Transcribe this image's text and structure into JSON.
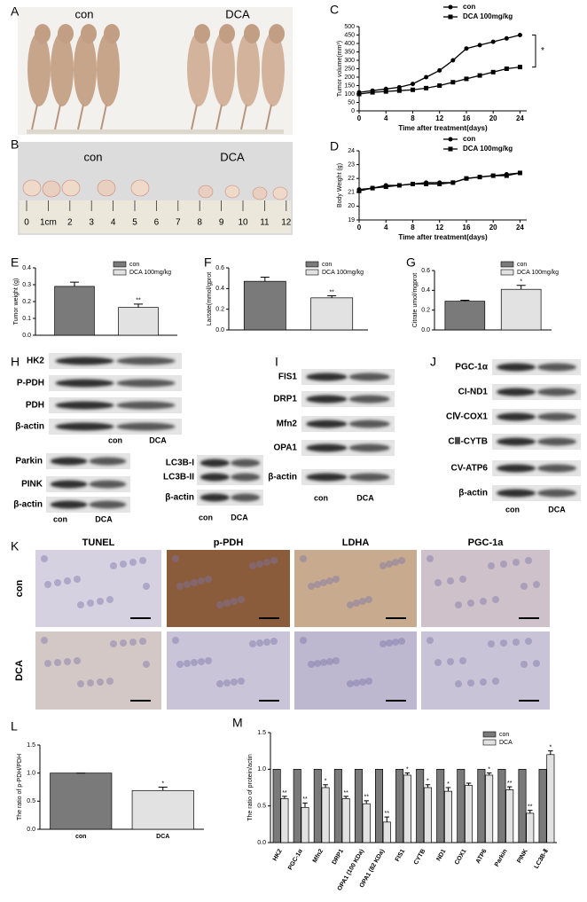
{
  "panel_labels": [
    "A",
    "B",
    "C",
    "D",
    "E",
    "F",
    "G",
    "H",
    "I",
    "J",
    "K",
    "L",
    "M"
  ],
  "photos": {
    "A": {
      "labels": [
        "con",
        "DCA"
      ]
    },
    "B": {
      "labels": [
        "con",
        "DCA"
      ],
      "ruler": [
        "0",
        "1cm",
        "2",
        "3",
        "4",
        "5",
        "6",
        "7",
        "8",
        "9",
        "10",
        "11",
        "12"
      ]
    }
  },
  "blots": [
    {
      "rows": [
        "HK2",
        "P-PDH",
        "PDH",
        "β-actin"
      ],
      "lanes": [
        "con",
        "DCA"
      ]
    },
    {
      "rows": [
        "Parkin",
        "PINK",
        "β-actin"
      ],
      "lanes": [
        "con",
        "DCA"
      ]
    },
    {
      "rows": [
        "LC3B-I",
        "LC3B-II",
        "β-actin"
      ],
      "lanes": [
        "con",
        "DCA"
      ]
    },
    {
      "rows": [
        "FIS1",
        "DRP1",
        "Mfn2",
        "OPA1",
        "β-actin"
      ],
      "lanes": [
        "con",
        "DCA"
      ]
    },
    {
      "rows": [
        "PGC-1α",
        "CI-ND1",
        "CⅣ-COX1",
        "CⅢ-CYTB",
        "CV-ATP6",
        "β-actin"
      ],
      "lanes": [
        "con",
        "DCA"
      ]
    }
  ],
  "ihc": {
    "columns": [
      "TUNEL",
      "p-PDH",
      "LDHA",
      "PGC-1a"
    ],
    "rows": [
      "con",
      "DCA"
    ]
  },
  "chart_data": [
    {
      "type": "line",
      "x": [
        0,
        2,
        4,
        6,
        8,
        10,
        12,
        14,
        16,
        18,
        20,
        22,
        24
      ],
      "xlim": [
        0,
        25
      ],
      "xticks": [
        0,
        4,
        8,
        12,
        16,
        20,
        24
      ],
      "ylim": [
        0,
        500
      ],
      "yticks": [
        0,
        50,
        100,
        150,
        200,
        250,
        300,
        350,
        400,
        450,
        500
      ],
      "x_label": "Time after treatment(days)",
      "y_label": "Tumor volume(mm³)",
      "series": [
        {
          "name": "con",
          "color": "#000000",
          "marker": "circle",
          "values": [
            110,
            120,
            130,
            140,
            160,
            200,
            240,
            300,
            370,
            390,
            410,
            430,
            450
          ]
        },
        {
          "name": "DCA 100mg/kg",
          "color": "#000000",
          "marker": "square",
          "values": [
            100,
            110,
            115,
            120,
            125,
            135,
            150,
            170,
            190,
            210,
            230,
            250,
            260
          ]
        }
      ],
      "annotation": "*"
    },
    {
      "type": "line",
      "x": [
        0,
        2,
        4,
        6,
        8,
        10,
        12,
        14,
        16,
        18,
        20,
        22,
        24
      ],
      "xlim": [
        0,
        25
      ],
      "xticks": [
        0,
        4,
        8,
        12,
        16,
        20,
        24
      ],
      "ylim": [
        19,
        24
      ],
      "yticks": [
        19,
        20,
        21,
        22,
        23,
        24
      ],
      "x_label": "Time after treatment(days)",
      "y_label": "Body Weight (g)",
      "series": [
        {
          "name": "con",
          "color": "#000000",
          "marker": "circle",
          "values": [
            21.2,
            21.3,
            21.5,
            21.5,
            21.6,
            21.7,
            21.7,
            21.7,
            22.0,
            22.1,
            22.2,
            22.3,
            22.4
          ]
        },
        {
          "name": "DCA 100mg/kg",
          "color": "#000000",
          "marker": "square",
          "values": [
            21.1,
            21.3,
            21.4,
            21.5,
            21.6,
            21.6,
            21.6,
            21.7,
            22.0,
            22.1,
            22.2,
            22.2,
            22.4
          ]
        }
      ]
    },
    {
      "type": "bar",
      "y_label": "Tumor weight (g)",
      "ylim": [
        0,
        0.4
      ],
      "yticks": [
        {
          "value": 0,
          "label": "0.0"
        },
        0.1,
        0.2,
        0.3,
        0.4
      ],
      "series": [
        {
          "name": "con",
          "color": "#7a7a7a",
          "values": [
            0.29
          ],
          "errors": [
            0.025
          ]
        },
        {
          "name": "DCA 100mg/kg",
          "color": "#e2e2e2",
          "values": [
            0.165
          ],
          "errors": [
            0.02
          ]
        }
      ],
      "annotation": "**"
    },
    {
      "type": "bar",
      "y_label": "Lactate(mmol/gprot",
      "ylim": [
        0,
        0.6
      ],
      "yticks": [
        {
          "value": 0,
          "label": "0.0"
        },
        0.2,
        0.4,
        0.6
      ],
      "series": [
        {
          "name": "con",
          "color": "#7a7a7a",
          "values": [
            0.47
          ],
          "errors": [
            0.04
          ]
        },
        {
          "name": "DCA 100mg/kg",
          "color": "#e2e2e2",
          "values": [
            0.31
          ],
          "errors": [
            0.02
          ]
        }
      ],
      "annotation": "**"
    },
    {
      "type": "bar",
      "y_label": "Citrate umol/mgprot",
      "ylim": [
        0,
        0.6
      ],
      "yticks": [
        {
          "value": 0,
          "label": "0.0"
        },
        0.2,
        0.4,
        0.6
      ],
      "series": [
        {
          "name": "con",
          "color": "#7a7a7a",
          "values": [
            0.29
          ],
          "errors": [
            0.01
          ]
        },
        {
          "name": "DCA 100mg/kg",
          "color": "#e2e2e2",
          "values": [
            0.41
          ],
          "errors": [
            0.04
          ]
        }
      ],
      "annotation": "*"
    },
    {
      "type": "bar",
      "y_label": "The ratio of p-PDH/PDH",
      "ylim": [
        0,
        1.5
      ],
      "yticks": [
        {
          "value": 0,
          "label": "0.0"
        },
        0.5,
        {
          "value": 1,
          "label": "1.0"
        },
        1.5
      ],
      "categories": [
        "con",
        "DCA"
      ],
      "values": [
        1,
        0.69
      ],
      "errors": [
        0,
        0.06
      ],
      "colors": [
        "#7a7a7a",
        "#e2e2e2"
      ],
      "annotation": "*"
    },
    {
      "type": "bar",
      "y_label": "The ratio of protein/actin",
      "ylim": [
        0,
        1.5
      ],
      "yticks": [
        {
          "value": 0,
          "label": "0.0"
        },
        0.5,
        {
          "value": 1,
          "label": "1.0"
        },
        1.5
      ],
      "categories": [
        "HK2",
        "PGC-1α",
        "Mfn2",
        "DRP1",
        "OPA1 (100 KDa)",
        "OPA1 (82 KDa)",
        "FIS1",
        "CYTB",
        "ND1",
        "COX1",
        "ATP6",
        "Parkin",
        "PINK",
        "LC3B-Ⅱ"
      ],
      "series": [
        {
          "name": "con",
          "color": "#7a7a7a",
          "values": [
            1,
            1,
            1,
            1,
            1,
            1,
            1,
            1,
            1,
            1,
            1,
            1,
            1,
            1
          ]
        },
        {
          "name": "DCA",
          "color": "#e2e2e2",
          "values": [
            0.6,
            0.48,
            0.75,
            0.6,
            0.53,
            0.28,
            0.92,
            0.75,
            0.7,
            0.78,
            0.92,
            0.72,
            0.4,
            1.2
          ],
          "errors": [
            0.03,
            0.06,
            0.04,
            0.03,
            0.04,
            0.07,
            0.03,
            0.04,
            0.05,
            0.03,
            0.03,
            0.04,
            0.04,
            0.05
          ],
          "significance": [
            "**",
            "**",
            "*",
            "**",
            "**",
            "**",
            "*",
            "*",
            "*",
            null,
            "*",
            "**",
            "**",
            "*"
          ]
        }
      ]
    }
  ]
}
